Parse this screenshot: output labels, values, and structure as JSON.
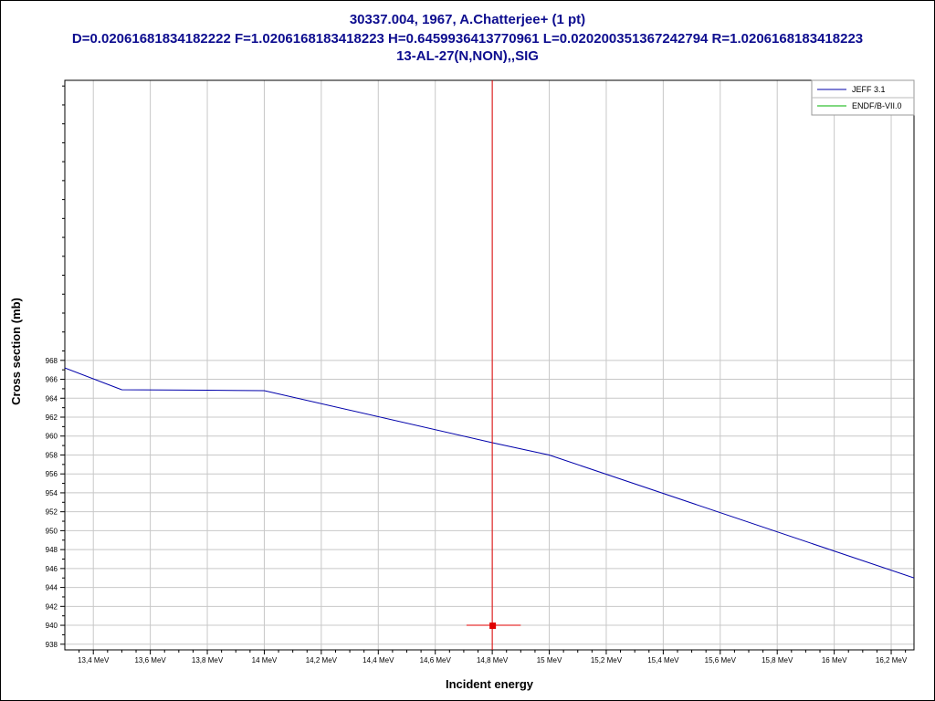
{
  "title": {
    "line1": "30337.004, 1967, A.Chatterjee+ (1 pt)",
    "line2": "D=0.02061681834182222 F=1.0206168183418223 H=0.6459936413770961 L=0.020200351367242794 R=1.0206168183418223",
    "line3": "13-AL-27(N,NON),,SIG"
  },
  "colors": {
    "title": "#0d0d8f",
    "jeff": "#0000aa",
    "endf": "#00b000",
    "experiment": "#e00000",
    "grid": "#c8c8c8"
  },
  "chart_data": {
    "type": "line",
    "xlabel": "Incident energy",
    "ylabel": "Cross section (mb)",
    "x_unit": "MeV",
    "xlim": [
      13.3,
      16.28
    ],
    "ylim": [
      937.4,
      997.6
    ],
    "x_ticks": [
      {
        "value": 13.4,
        "label": "13,4 MeV"
      },
      {
        "value": 13.6,
        "label": "13,6 MeV"
      },
      {
        "value": 13.8,
        "label": "13,8 MeV"
      },
      {
        "value": 14.0,
        "label": "14 MeV"
      },
      {
        "value": 14.2,
        "label": "14,2 MeV"
      },
      {
        "value": 14.4,
        "label": "14,4 MeV"
      },
      {
        "value": 14.6,
        "label": "14,6 MeV"
      },
      {
        "value": 14.8,
        "label": "14,8 MeV"
      },
      {
        "value": 15.0,
        "label": "15 MeV"
      },
      {
        "value": 15.2,
        "label": "15,2 MeV"
      },
      {
        "value": 15.4,
        "label": "15,4 MeV"
      },
      {
        "value": 15.6,
        "label": "15,6 MeV"
      },
      {
        "value": 15.8,
        "label": "15,8 MeV"
      },
      {
        "value": 16.0,
        "label": "16 MeV"
      },
      {
        "value": 16.2,
        "label": "16,2 MeV"
      }
    ],
    "y_ticks": [
      938,
      940,
      942,
      944,
      946,
      948,
      950,
      952,
      954,
      956,
      958,
      960,
      962,
      964,
      966,
      968
    ],
    "grid": true,
    "legend_position": "top-right",
    "series": [
      {
        "name": "JEFF 3.1",
        "color": "#0000aa",
        "x": [
          13.3,
          13.5,
          13.8,
          14.0,
          14.8,
          15.0,
          16.28
        ],
        "y": [
          967.2,
          964.9,
          964.85,
          964.8,
          959.3,
          958.0,
          945.0
        ]
      },
      {
        "name": "ENDF/B-VII.0",
        "color": "#00b000",
        "x": [],
        "y": []
      }
    ],
    "experimental_points": [
      {
        "x": 14.8,
        "y": 940.0,
        "x_err": 0.1,
        "y_err": 55.0
      }
    ]
  }
}
